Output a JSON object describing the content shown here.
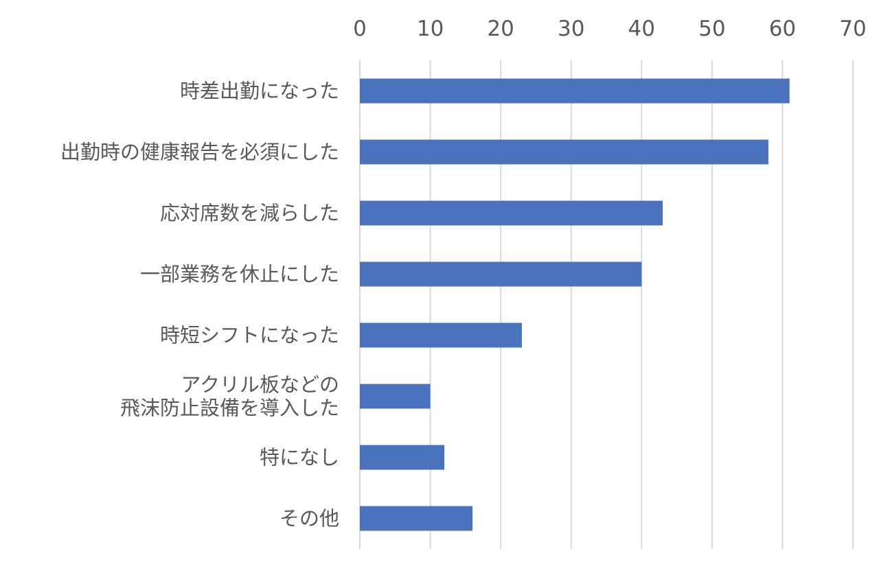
{
  "chart_data": {
    "type": "bar",
    "orientation": "horizontal",
    "categories": [
      [
        "時差出勤になった"
      ],
      [
        "出勤時の健康報告を必須にした"
      ],
      [
        "応対席数を減らした"
      ],
      [
        "一部業務を休止にした"
      ],
      [
        "時短シフトになった"
      ],
      [
        "アクリル板などの",
        "飛沫防止設備を導入した"
      ],
      [
        "特になし"
      ],
      [
        "その他"
      ]
    ],
    "values": [
      61,
      58,
      43,
      40,
      23,
      10,
      12,
      16
    ],
    "xlim": [
      0,
      70
    ],
    "xticks": [
      0,
      10,
      20,
      30,
      40,
      50,
      60,
      70
    ],
    "tick_labels": [
      "0",
      "10",
      "20",
      "30",
      "40",
      "50",
      "60",
      "70"
    ],
    "x_axis_position": "top",
    "grid": true,
    "legend": "none",
    "title": "",
    "xlabel": "",
    "ylabel": "",
    "colors": {
      "bar": "#4a72bd",
      "grid": "#d9d9d9",
      "text": "#595959"
    }
  }
}
